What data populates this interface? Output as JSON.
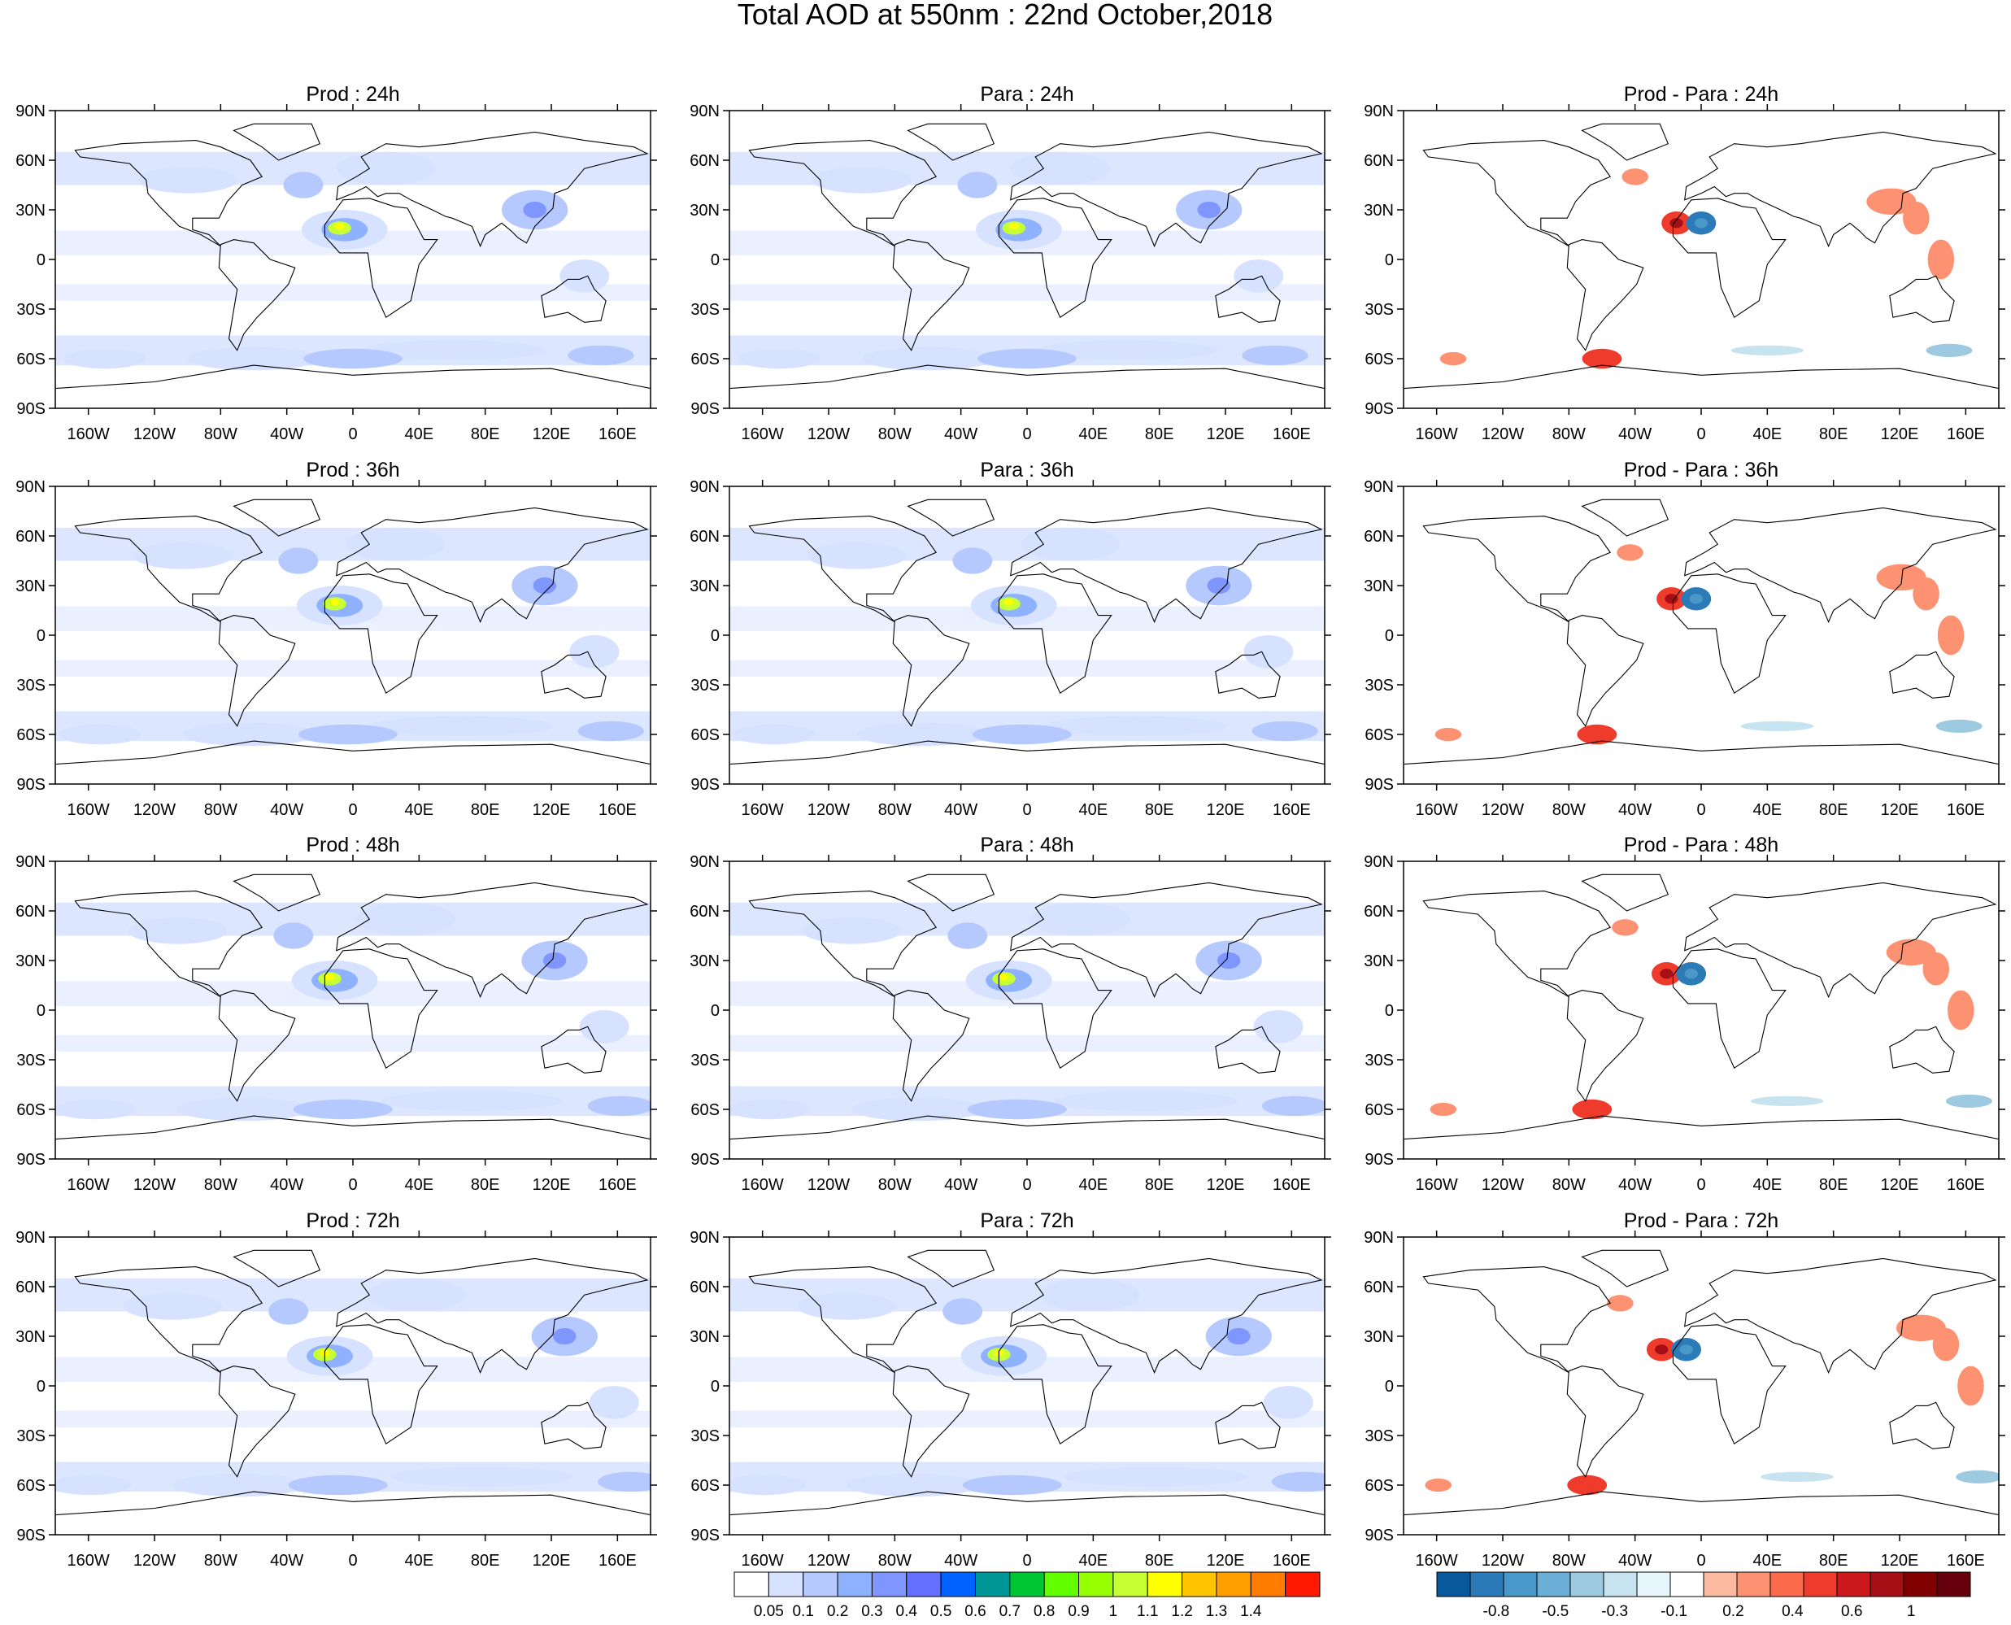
{
  "title": "Total AOD at 550nm : 22nd October,2018",
  "lat_ticks": [
    "90N",
    "60N",
    "30N",
    "0",
    "30S",
    "60S",
    "90S"
  ],
  "lon_ticks": [
    "160W",
    "120W",
    "80W",
    "40W",
    "0",
    "40E",
    "80E",
    "120E",
    "160E"
  ],
  "panels": [
    {
      "row": 0,
      "col": 0,
      "title": "Prod : 24h"
    },
    {
      "row": 0,
      "col": 1,
      "title": "Para : 24h"
    },
    {
      "row": 0,
      "col": 2,
      "title": "Prod - Para : 24h"
    },
    {
      "row": 1,
      "col": 0,
      "title": "Prod : 36h"
    },
    {
      "row": 1,
      "col": 1,
      "title": "Para : 36h"
    },
    {
      "row": 1,
      "col": 2,
      "title": "Prod - Para : 36h"
    },
    {
      "row": 2,
      "col": 0,
      "title": "Prod : 48h"
    },
    {
      "row": 2,
      "col": 1,
      "title": "Para : 48h"
    },
    {
      "row": 2,
      "col": 2,
      "title": "Prod - Para : 48h"
    },
    {
      "row": 3,
      "col": 0,
      "title": "Prod : 72h"
    },
    {
      "row": 3,
      "col": 1,
      "title": "Para : 72h"
    },
    {
      "row": 3,
      "col": 2,
      "title": "Prod - Para : 72h"
    }
  ],
  "aod_colorbar": {
    "colors": [
      "#ffffff",
      "#d6e2ff",
      "#b5c9ff",
      "#8eb2ff",
      "#7f96ff",
      "#6370ff",
      "#0063ff",
      "#009696",
      "#00c633",
      "#63ff00",
      "#96ff00",
      "#c6ff33",
      "#ffff00",
      "#ffc600",
      "#ffa000",
      "#ff7c00",
      "#ff1900"
    ],
    "labels": [
      "0.05",
      "0.1",
      "0.2",
      "0.3",
      "0.4",
      "0.5",
      "0.6",
      "0.7",
      "0.8",
      "0.9",
      "1",
      "1.1",
      "1.2",
      "1.3",
      "1.4"
    ]
  },
  "diff_colorbar": {
    "colors": [
      "#08589e",
      "#2b7bb8",
      "#4a98c9",
      "#6baed6",
      "#9ecae1",
      "#c6e3ef",
      "#e6f5fb",
      "#ffffff",
      "#fcbba1",
      "#fc9272",
      "#fb6a4a",
      "#ef3b2c",
      "#cb181d",
      "#a50f15",
      "#800000",
      "#67000d"
    ],
    "labels": [
      "-0.8",
      "-0.5",
      "-0.3",
      "-0.1",
      "0.2",
      "0.4",
      "0.6",
      "1"
    ]
  },
  "fields": {
    "aod_colors": [
      "#d6e2ff",
      "#b5c9ff",
      "#8eb2ff",
      "#7f96ff",
      "#c6ff33",
      "#96ff00",
      "#ffff00"
    ],
    "diff_colors": [
      "#9ecae1",
      "#4a98c9",
      "#2b7bb8",
      "#fc9272",
      "#ef3b2c",
      "#a50f15",
      "#c6e3ef"
    ]
  }
}
